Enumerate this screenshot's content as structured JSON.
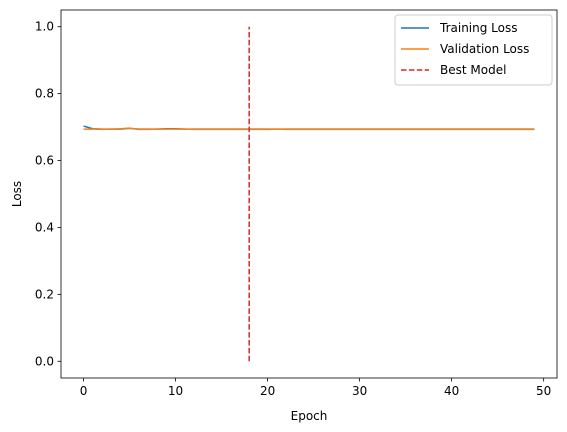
{
  "chart_data": {
    "type": "line",
    "title": "",
    "xlabel": "Epoch",
    "ylabel": "Loss",
    "xlim": [
      -2.45,
      51.45
    ],
    "ylim": [
      -0.05,
      1.05
    ],
    "xticks": [
      0,
      10,
      20,
      30,
      40,
      50
    ],
    "yticks": [
      0.0,
      0.2,
      0.4,
      0.6,
      0.8,
      1.0
    ],
    "xtick_labels": [
      "0",
      "10",
      "20",
      "30",
      "40",
      "50"
    ],
    "ytick_labels": [
      "0.0",
      "0.2",
      "0.4",
      "0.6",
      "0.8",
      "1.0"
    ],
    "grid": false,
    "legend_position": "top-right",
    "series": [
      {
        "name": "Training Loss",
        "color": "#1f77b4",
        "style": "solid",
        "x": [
          0,
          1,
          2,
          3,
          4,
          5,
          6,
          7,
          8,
          9,
          10,
          11,
          12,
          13,
          14,
          15,
          16,
          17,
          18,
          19,
          20,
          21,
          22,
          23,
          24,
          25,
          26,
          27,
          28,
          29,
          30,
          31,
          32,
          33,
          34,
          35,
          36,
          37,
          38,
          39,
          40,
          41,
          42,
          43,
          44,
          45,
          46,
          47,
          48,
          49
        ],
        "y": [
          0.703,
          0.695,
          0.694,
          0.694,
          0.694,
          0.696,
          0.694,
          0.694,
          0.694,
          0.695,
          0.695,
          0.694,
          0.694,
          0.694,
          0.694,
          0.694,
          0.694,
          0.694,
          0.694,
          0.694,
          0.694,
          0.694,
          0.694,
          0.694,
          0.694,
          0.694,
          0.694,
          0.694,
          0.694,
          0.694,
          0.694,
          0.694,
          0.694,
          0.694,
          0.694,
          0.694,
          0.694,
          0.694,
          0.694,
          0.694,
          0.694,
          0.694,
          0.694,
          0.694,
          0.694,
          0.694,
          0.694,
          0.694,
          0.694,
          0.694
        ]
      },
      {
        "name": "Validation Loss",
        "color": "#ff7f0e",
        "style": "solid",
        "x": [
          0,
          1,
          2,
          3,
          4,
          5,
          6,
          7,
          8,
          9,
          10,
          11,
          12,
          13,
          14,
          15,
          16,
          17,
          18,
          19,
          20,
          21,
          22,
          23,
          24,
          25,
          26,
          27,
          28,
          29,
          30,
          31,
          32,
          33,
          34,
          35,
          36,
          37,
          38,
          39,
          40,
          41,
          42,
          43,
          44,
          45,
          46,
          47,
          48,
          49
        ],
        "y": [
          0.694,
          0.694,
          0.693,
          0.694,
          0.695,
          0.697,
          0.693,
          0.693,
          0.694,
          0.694,
          0.694,
          0.694,
          0.693,
          0.693,
          0.693,
          0.693,
          0.693,
          0.693,
          0.693,
          0.693,
          0.693,
          0.694,
          0.693,
          0.693,
          0.693,
          0.693,
          0.693,
          0.693,
          0.693,
          0.693,
          0.693,
          0.693,
          0.693,
          0.693,
          0.693,
          0.693,
          0.693,
          0.693,
          0.693,
          0.693,
          0.693,
          0.693,
          0.693,
          0.693,
          0.693,
          0.693,
          0.693,
          0.693,
          0.693,
          0.693
        ]
      },
      {
        "name": "Best Model",
        "color": "#d62728",
        "style": "dashed",
        "x": [
          18,
          18
        ],
        "y": [
          0.0,
          1.0
        ]
      }
    ]
  }
}
